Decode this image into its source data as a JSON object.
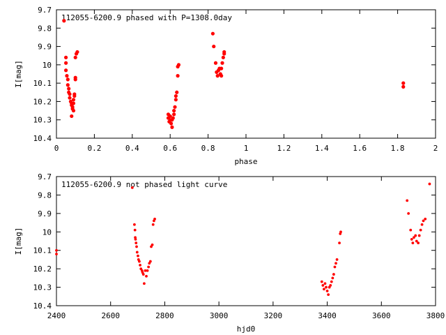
{
  "chart_data": [
    {
      "type": "scatter",
      "title": "112055-6200.9 phased with P=1308.0day",
      "xlabel": "phase",
      "ylabel": "I[mag]",
      "xlim": [
        0,
        2
      ],
      "ylim": [
        10.4,
        9.7
      ],
      "y_inverted": true,
      "grid": false,
      "xticks": [
        "0",
        "0.2",
        "0.4",
        "0.6",
        "0.8",
        "1",
        "1.2",
        "1.4",
        "1.6",
        "1.8",
        "2"
      ],
      "yticks": [
        "9.7",
        "9.8",
        "9.9",
        "10",
        "10.1",
        "10.2",
        "10.3",
        "10.4"
      ],
      "marker_color": "#ff0000",
      "series": [
        {
          "points": [
            [
              0.04,
              9.76
            ],
            [
              0.05,
              9.96
            ],
            [
              0.05,
              9.99
            ],
            [
              0.05,
              10.03
            ],
            [
              0.055,
              10.06
            ],
            [
              0.06,
              10.08
            ],
            [
              0.06,
              10.11
            ],
            [
              0.065,
              10.13
            ],
            [
              0.065,
              10.15
            ],
            [
              0.07,
              10.16
            ],
            [
              0.07,
              10.18
            ],
            [
              0.075,
              10.2
            ],
            [
              0.08,
              10.21
            ],
            [
              0.08,
              10.22
            ],
            [
              0.085,
              10.23
            ],
            [
              0.085,
              10.24
            ],
            [
              0.09,
              10.25
            ],
            [
              0.08,
              10.28
            ],
            [
              0.09,
              10.21
            ],
            [
              0.09,
              10.19
            ],
            [
              0.095,
              10.17
            ],
            [
              0.095,
              10.16
            ],
            [
              0.1,
              10.08
            ],
            [
              0.1,
              10.07
            ],
            [
              0.1,
              9.96
            ],
            [
              0.105,
              9.94
            ],
            [
              0.11,
              9.93
            ],
            [
              0.59,
              10.27
            ],
            [
              0.59,
              10.29
            ],
            [
              0.595,
              10.31
            ],
            [
              0.6,
              10.28
            ],
            [
              0.6,
              10.3
            ],
            [
              0.605,
              10.32
            ],
            [
              0.61,
              10.34
            ],
            [
              0.61,
              10.3
            ],
            [
              0.615,
              10.29
            ],
            [
              0.62,
              10.27
            ],
            [
              0.62,
              10.25
            ],
            [
              0.625,
              10.23
            ],
            [
              0.63,
              10.19
            ],
            [
              0.63,
              10.17
            ],
            [
              0.635,
              10.15
            ],
            [
              0.64,
              10.06
            ],
            [
              0.64,
              10.01
            ],
            [
              0.645,
              10.0
            ],
            [
              0.825,
              9.83
            ],
            [
              0.83,
              9.9
            ],
            [
              0.84,
              9.99
            ],
            [
              0.845,
              10.04
            ],
            [
              0.85,
              10.06
            ],
            [
              0.855,
              10.03
            ],
            [
              0.86,
              10.02
            ],
            [
              0.865,
              10.05
            ],
            [
              0.87,
              10.06
            ],
            [
              0.87,
              10.02
            ],
            [
              0.875,
              9.99
            ],
            [
              0.88,
              9.96
            ],
            [
              0.885,
              9.94
            ],
            [
              0.885,
              9.93
            ],
            [
              1.83,
              10.1
            ],
            [
              1.83,
              10.12
            ]
          ]
        }
      ]
    },
    {
      "type": "scatter",
      "title": "112055-6200.9 not phased light curve",
      "xlabel": "hjd0",
      "ylabel": "I[mag]",
      "xlim": [
        2400,
        3800
      ],
      "ylim": [
        10.4,
        9.7
      ],
      "y_inverted": true,
      "grid": false,
      "xticks": [
        "2400",
        "2600",
        "2800",
        "3000",
        "3200",
        "3400",
        "3600",
        "3800"
      ],
      "yticks": [
        "9.7",
        "9.8",
        "9.9",
        "10",
        "10.1",
        "10.2",
        "10.3",
        "10.4"
      ],
      "marker_color": "#ff0000",
      "series": [
        {
          "points": [
            [
              2400,
              10.1
            ],
            [
              2400,
              10.12
            ],
            [
              2680,
              9.76
            ],
            [
              2688,
              9.96
            ],
            [
              2690,
              9.99
            ],
            [
              2691,
              10.03
            ],
            [
              2692,
              10.04
            ],
            [
              2694,
              10.06
            ],
            [
              2696,
              10.08
            ],
            [
              2698,
              10.11
            ],
            [
              2701,
              10.13
            ],
            [
              2703,
              10.15
            ],
            [
              2706,
              10.16
            ],
            [
              2709,
              10.18
            ],
            [
              2712,
              10.2
            ],
            [
              2716,
              10.21
            ],
            [
              2718,
              10.22
            ],
            [
              2721,
              10.23
            ],
            [
              2724,
              10.28
            ],
            [
              2728,
              10.21
            ],
            [
              2732,
              10.24
            ],
            [
              2736,
              10.21
            ],
            [
              2740,
              10.19
            ],
            [
              2743,
              10.17
            ],
            [
              2747,
              10.16
            ],
            [
              2750,
              10.08
            ],
            [
              2754,
              10.07
            ],
            [
              2757,
              9.96
            ],
            [
              2760,
              9.94
            ],
            [
              2763,
              9.93
            ],
            [
              3380,
              10.27
            ],
            [
              3384,
              10.29
            ],
            [
              3388,
              10.31
            ],
            [
              3392,
              10.28
            ],
            [
              3396,
              10.3
            ],
            [
              3400,
              10.32
            ],
            [
              3404,
              10.34
            ],
            [
              3408,
              10.3
            ],
            [
              3412,
              10.29
            ],
            [
              3416,
              10.27
            ],
            [
              3420,
              10.25
            ],
            [
              3424,
              10.23
            ],
            [
              3428,
              10.19
            ],
            [
              3432,
              10.17
            ],
            [
              3436,
              10.15
            ],
            [
              3445,
              10.06
            ],
            [
              3448,
              10.01
            ],
            [
              3450,
              10.0
            ],
            [
              3695,
              9.83
            ],
            [
              3700,
              9.9
            ],
            [
              3708,
              9.99
            ],
            [
              3712,
              10.04
            ],
            [
              3716,
              10.06
            ],
            [
              3720,
              10.03
            ],
            [
              3726,
              10.02
            ],
            [
              3730,
              10.05
            ],
            [
              3736,
              10.06
            ],
            [
              3740,
              10.02
            ],
            [
              3745,
              9.99
            ],
            [
              3750,
              9.96
            ],
            [
              3755,
              9.94
            ],
            [
              3762,
              9.93
            ],
            [
              3778,
              9.74
            ]
          ]
        }
      ]
    }
  ]
}
